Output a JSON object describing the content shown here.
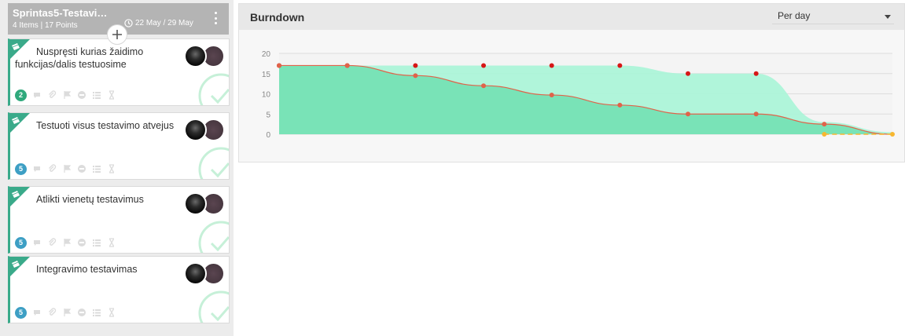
{
  "sprint": {
    "title": "Sprintas5-Testavi…",
    "summary": "4 Items | 17 Points",
    "dates": "22 May / 29 May",
    "add_label": "+"
  },
  "cards": [
    {
      "title": "Nuspręsti kurias žaidimo funkcijas/dalis testuosime",
      "points": "2",
      "badge_color": "#2fa97c"
    },
    {
      "title": "Testuoti visus testavimo atvejus",
      "points": "5",
      "badge_color": "#3d9fc4"
    },
    {
      "title": "Atlikti vienetų testavimus",
      "points": "5",
      "badge_color": "#3d9fc4"
    },
    {
      "title": "Integravimo testavimas",
      "points": "5",
      "badge_color": "#3d9fc4"
    }
  ],
  "card_icons": [
    "comment-icon",
    "attachment-icon",
    "flag-icon",
    "blocked-icon",
    "checklist-icon",
    "hourglass-icon"
  ],
  "colors": {
    "accent": "#3aaa8a",
    "ideal_fill": "#a9f5d7",
    "remaining_fill": "#76e2b5",
    "remaining_line": "#e0634a",
    "ideal_points": "#d61717",
    "future_points": "#f7b731"
  },
  "burndown": {
    "title": "Burndown",
    "period_select": "Per day"
  },
  "chart_data": {
    "type": "area",
    "ylim": [
      0,
      20
    ],
    "yticks": [
      20,
      15,
      10,
      5,
      0
    ],
    "grid": true,
    "series": [
      {
        "values": [
          17,
          17,
          17,
          17,
          17,
          17,
          15,
          15,
          3,
          0.5
        ]
      },
      {
        "values": [
          17,
          17,
          14.5,
          12,
          9.7,
          7.2,
          5,
          5,
          2.5,
          0
        ]
      }
    ],
    "points_count": 10,
    "projected_from_index": 8
  }
}
